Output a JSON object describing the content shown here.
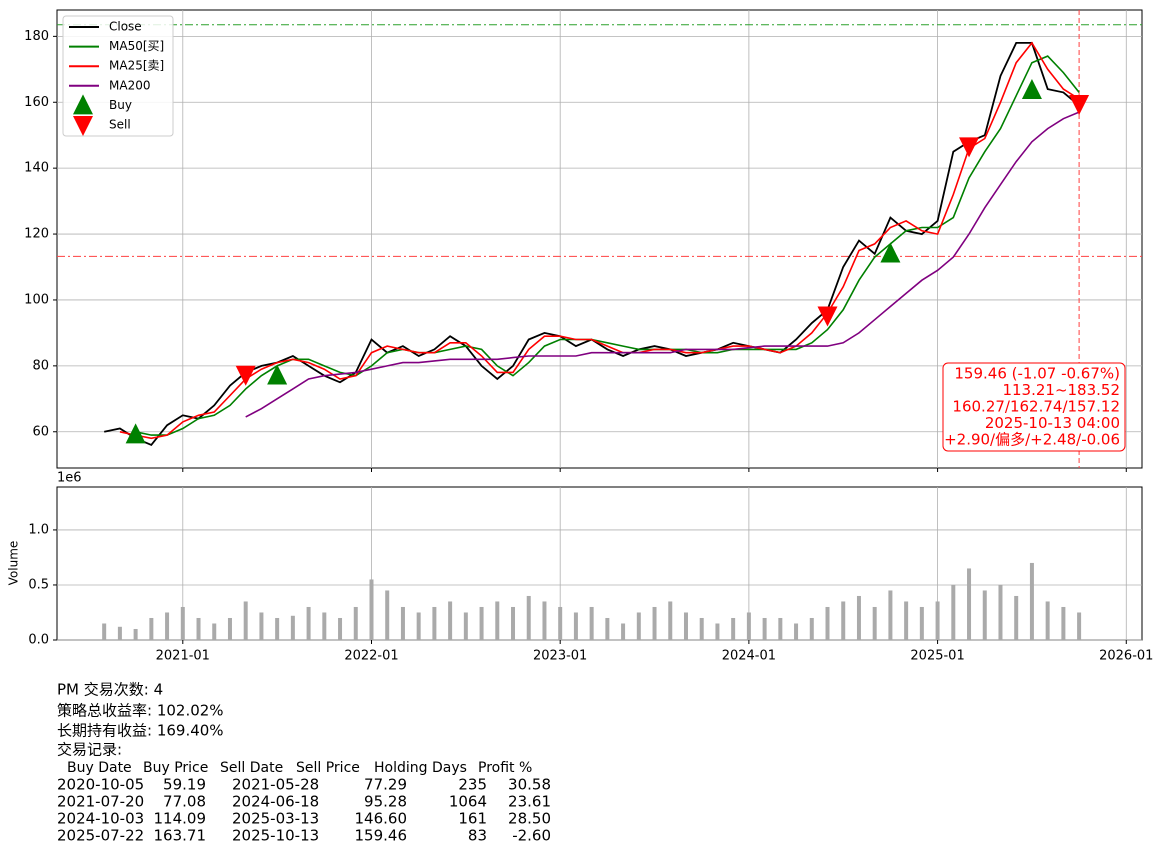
{
  "chart_data": [
    {
      "type": "line",
      "x": [
        "2020-08",
        "2020-09",
        "2020-10",
        "2020-11",
        "2020-12",
        "2021-01",
        "2021-02",
        "2021-03",
        "2021-04",
        "2021-05",
        "2021-06",
        "2021-07",
        "2021-08",
        "2021-09",
        "2021-10",
        "2021-11",
        "2021-12",
        "2022-01",
        "2022-02",
        "2022-03",
        "2022-04",
        "2022-05",
        "2022-06",
        "2022-07",
        "2022-08",
        "2022-09",
        "2022-10",
        "2022-11",
        "2022-12",
        "2023-01",
        "2023-02",
        "2023-03",
        "2023-04",
        "2023-05",
        "2023-06",
        "2023-07",
        "2023-08",
        "2023-09",
        "2023-10",
        "2023-11",
        "2023-12",
        "2024-01",
        "2024-02",
        "2024-03",
        "2024-04",
        "2024-05",
        "2024-06",
        "2024-07",
        "2024-08",
        "2024-09",
        "2024-10",
        "2024-11",
        "2024-12",
        "2025-01",
        "2025-02",
        "2025-03",
        "2025-04",
        "2025-05",
        "2025-06",
        "2025-07",
        "2025-08",
        "2025-09",
        "2025-10"
      ],
      "series": [
        {
          "name": "Close",
          "color": "#000000",
          "values": [
            60,
            61,
            58,
            56,
            62,
            65,
            64,
            68,
            74,
            78,
            80,
            81,
            83,
            80,
            77,
            75,
            78,
            88,
            84,
            86,
            83,
            85,
            89,
            86,
            80,
            76,
            80,
            88,
            90,
            89,
            86,
            88,
            85,
            83,
            85,
            86,
            85,
            83,
            84,
            85,
            87,
            86,
            85,
            84,
            88,
            93,
            97,
            110,
            118,
            114,
            125,
            121,
            120,
            124,
            145,
            148,
            150,
            168,
            178,
            178,
            164,
            163,
            159
          ]
        },
        {
          "name": "MA50[买]",
          "color": "#008000",
          "values": [
            null,
            null,
            60,
            59,
            59,
            61,
            64,
            65,
            68,
            73,
            77,
            80,
            82,
            82,
            80,
            78,
            77,
            80,
            84,
            85,
            84,
            84,
            85,
            86,
            85,
            80,
            77,
            81,
            86,
            88,
            88,
            88,
            87,
            86,
            85,
            85,
            85,
            85,
            84,
            84,
            85,
            85,
            85,
            85,
            85,
            87,
            91,
            97,
            106,
            113,
            117,
            121,
            122,
            122,
            125,
            137,
            145,
            152,
            162,
            172,
            174,
            169,
            163
          ]
        },
        {
          "name": "MA25[卖]",
          "color": "#ff0000",
          "values": [
            null,
            60,
            59,
            58,
            59,
            63,
            65,
            66,
            71,
            76,
            79,
            81,
            82,
            81,
            79,
            76,
            77,
            84,
            86,
            85,
            84,
            84,
            87,
            87,
            83,
            78,
            78,
            85,
            89,
            89,
            88,
            88,
            86,
            84,
            84,
            85,
            85,
            84,
            84,
            85,
            86,
            86,
            85,
            84,
            86,
            90,
            96,
            104,
            115,
            117,
            122,
            124,
            121,
            120,
            132,
            146,
            149,
            160,
            172,
            178,
            170,
            164,
            161
          ]
        },
        {
          "name": "MA200",
          "color": "#800080",
          "values": [
            null,
            null,
            null,
            null,
            null,
            null,
            null,
            null,
            null,
            64.5,
            67,
            70,
            73,
            76,
            77,
            77.5,
            78,
            79,
            80,
            81,
            81,
            81.5,
            82,
            82,
            82,
            82,
            82.5,
            83,
            83,
            83,
            83,
            84,
            84,
            84,
            84,
            84,
            84,
            85,
            85,
            85,
            85,
            85.5,
            86,
            86,
            86,
            86,
            86,
            87,
            90,
            94,
            98,
            102,
            106,
            109,
            113,
            120,
            128,
            135,
            142,
            148,
            152,
            155,
            157
          ]
        },
        {
          "name": "Buy",
          "color": "#008000",
          "marker": "up",
          "x": [
            "2020-10",
            "2021-07",
            "2024-10",
            "2025-07"
          ],
          "values": [
            59.19,
            77.08,
            114.09,
            163.71
          ]
        },
        {
          "name": "Sell",
          "color": "#ff0000",
          "marker": "down",
          "x": [
            "2021-05",
            "2024-06",
            "2025-03",
            "2025-10"
          ],
          "values": [
            77.29,
            95.28,
            146.6,
            159.46
          ]
        }
      ],
      "hlines": [
        {
          "value": 183.52,
          "color": "#2ca02c"
        },
        {
          "value": 113.21,
          "color": "#ff4040"
        }
      ],
      "vline": "2025-10",
      "annotation": [
        "159.46 (-1.07 -0.67%)",
        "113.21~183.52",
        "160.27/162.74/157.12",
        "2025-10-13 04:00",
        "+2.90/偏多/+2.48/-0.06"
      ],
      "xlim": [
        "2020-05",
        "2026-02"
      ],
      "ylim": [
        49,
        188
      ],
      "yticks": [
        60,
        80,
        100,
        120,
        140,
        160,
        180
      ],
      "grid": true,
      "legend": "upper left"
    },
    {
      "type": "bar",
      "ylabel": "Volume",
      "y_offset_label": "1e6",
      "color": "#aaaaaa",
      "x": [
        "2020-08",
        "2020-09",
        "2020-10",
        "2020-11",
        "2020-12",
        "2021-01",
        "2021-02",
        "2021-03",
        "2021-04",
        "2021-05",
        "2021-06",
        "2021-07",
        "2021-08",
        "2021-09",
        "2021-10",
        "2021-11",
        "2021-12",
        "2022-01",
        "2022-02",
        "2022-03",
        "2022-04",
        "2022-05",
        "2022-06",
        "2022-07",
        "2022-08",
        "2022-09",
        "2022-10",
        "2022-11",
        "2022-12",
        "2023-01",
        "2023-02",
        "2023-03",
        "2023-04",
        "2023-05",
        "2023-06",
        "2023-07",
        "2023-08",
        "2023-09",
        "2023-10",
        "2023-11",
        "2023-12",
        "2024-01",
        "2024-02",
        "2024-03",
        "2024-04",
        "2024-05",
        "2024-06",
        "2024-07",
        "2024-08",
        "2024-09",
        "2024-10",
        "2024-11",
        "2024-12",
        "2025-01",
        "2025-02",
        "2025-03",
        "2025-04",
        "2025-05",
        "2025-06",
        "2025-07",
        "2025-08",
        "2025-09",
        "2025-10"
      ],
      "values": [
        0.15,
        0.12,
        0.1,
        0.2,
        0.25,
        0.3,
        0.2,
        0.15,
        0.2,
        0.35,
        0.25,
        0.2,
        0.22,
        0.3,
        0.25,
        0.2,
        0.3,
        0.55,
        0.45,
        0.3,
        0.25,
        0.3,
        0.35,
        0.25,
        0.3,
        0.35,
        0.3,
        0.4,
        0.35,
        0.3,
        0.25,
        0.3,
        0.2,
        0.15,
        0.25,
        0.3,
        0.35,
        0.25,
        0.2,
        0.15,
        0.2,
        0.25,
        0.2,
        0.2,
        0.15,
        0.2,
        0.3,
        0.35,
        0.4,
        0.3,
        0.45,
        0.35,
        0.3,
        0.35,
        0.5,
        0.65,
        0.45,
        0.5,
        0.4,
        0.7,
        0.35,
        0.3,
        0.25
      ],
      "xlim": [
        "2020-05",
        "2026-02"
      ],
      "xticks": [
        "2021-01",
        "2022-01",
        "2023-01",
        "2024-01",
        "2025-01",
        "2026-01"
      ],
      "ylim": [
        0,
        1.39
      ],
      "yticks": [
        {
          "value": 0,
          "label": "0.0"
        },
        {
          "value": 0.5,
          "label": "0.5"
        },
        {
          "value": 1,
          "label": "1.0"
        }
      ],
      "grid": true
    }
  ],
  "report": {
    "lines": [
      "PM 交易次数: 4",
      "策略总收益率: 102.02%",
      "长期持有收益: 169.40%",
      "交易记录:"
    ],
    "table": {
      "columns": [
        "Buy Date",
        "Buy Price",
        "Sell Date",
        "Sell Price",
        "Holding Days",
        "Profit %"
      ],
      "rows": [
        [
          "2020-10-05",
          "59.19",
          "2021-05-28",
          "77.29",
          "235",
          "30.58"
        ],
        [
          "2021-07-20",
          "77.08",
          "2024-06-18",
          "95.28",
          "1064",
          "23.61"
        ],
        [
          "2024-10-03",
          "114.09",
          "2025-03-13",
          "146.60",
          "161",
          "28.50"
        ],
        [
          "2025-07-22",
          "163.71",
          "2025-10-13",
          "159.46",
          "83",
          "-2.60"
        ]
      ]
    }
  }
}
